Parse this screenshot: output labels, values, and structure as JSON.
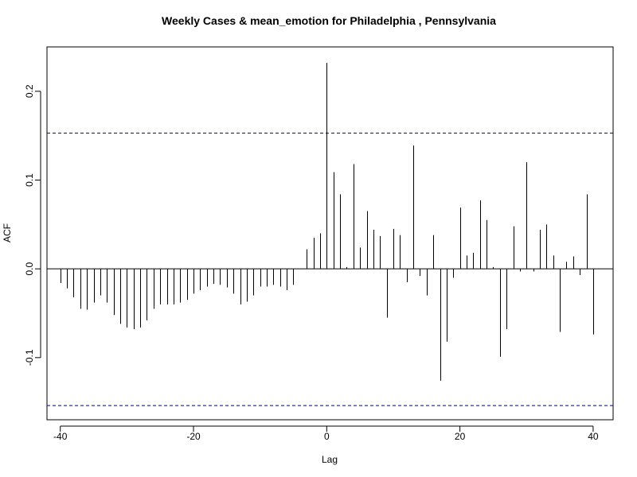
{
  "chart_data": {
    "type": "bar",
    "title": "Weekly Cases & mean_emotion for Philadelphia , Pennsylvania",
    "xlabel": "Lag",
    "ylabel": "ACF",
    "xlim": [
      -42,
      43
    ],
    "ylim": [
      -0.17,
      0.25
    ],
    "xticks": [
      -40,
      -20,
      0,
      20,
      40
    ],
    "yticks": [
      -0.1,
      0.0,
      0.1,
      0.2
    ],
    "ytick_labels": [
      "-0.1",
      "0.0",
      "0.1",
      "0.2"
    ],
    "confidence_band": [
      0.153,
      -0.154
    ],
    "confidence_color": "#00008b",
    "bar_color": "#000000",
    "lags": [
      -40,
      -39,
      -38,
      -37,
      -36,
      -35,
      -34,
      -33,
      -32,
      -31,
      -30,
      -29,
      -28,
      -27,
      -26,
      -25,
      -24,
      -23,
      -22,
      -21,
      -20,
      -19,
      -18,
      -17,
      -16,
      -15,
      -14,
      -13,
      -12,
      -11,
      -10,
      -9,
      -8,
      -7,
      -6,
      -5,
      -4,
      -3,
      -2,
      -1,
      0,
      1,
      2,
      3,
      4,
      5,
      6,
      7,
      8,
      9,
      10,
      11,
      12,
      13,
      14,
      15,
      16,
      17,
      18,
      19,
      20,
      21,
      22,
      23,
      24,
      25,
      26,
      27,
      28,
      29,
      30,
      31,
      32,
      33,
      34,
      35,
      36,
      37,
      38,
      39,
      40
    ],
    "values": [
      -0.016,
      -0.022,
      -0.032,
      -0.045,
      -0.046,
      -0.038,
      -0.03,
      -0.038,
      -0.052,
      -0.062,
      -0.066,
      -0.068,
      -0.066,
      -0.058,
      -0.045,
      -0.04,
      -0.04,
      -0.04,
      -0.038,
      -0.035,
      -0.028,
      -0.024,
      -0.02,
      -0.017,
      -0.018,
      -0.021,
      -0.028,
      -0.04,
      -0.037,
      -0.03,
      -0.02,
      -0.02,
      -0.018,
      -0.02,
      -0.024,
      -0.018,
      0.0,
      0.022,
      0.035,
      0.04,
      0.232,
      0.109,
      0.084,
      0.002,
      0.118,
      0.024,
      0.065,
      0.044,
      0.037,
      -0.055,
      0.045,
      0.038,
      -0.015,
      0.139,
      -0.008,
      -0.03,
      0.038,
      -0.126,
      -0.082,
      -0.01,
      0.069,
      0.015,
      0.018,
      0.077,
      0.055,
      0.002,
      -0.099,
      -0.068,
      0.048,
      -0.003,
      0.12,
      -0.003,
      0.044,
      0.05,
      0.015,
      -0.071,
      0.008,
      0.014,
      -0.007,
      0.084,
      -0.074
    ]
  }
}
